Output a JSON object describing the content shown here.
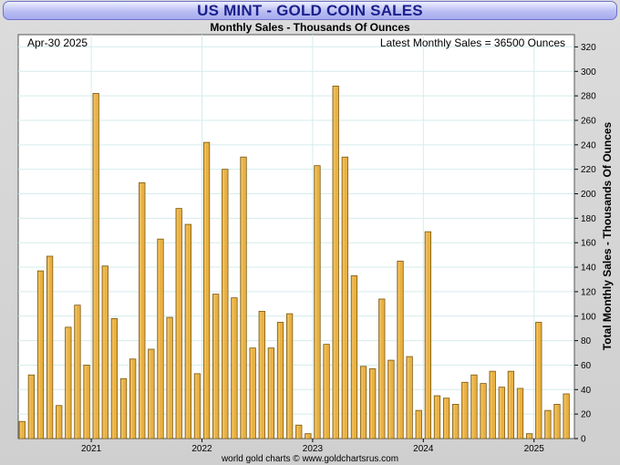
{
  "header": {
    "title": "US MINT - GOLD COIN SALES",
    "subtitle": "Monthly Sales - Thousands Of Ounces"
  },
  "annotations": {
    "date": "Apr-30  2025",
    "latest": "Latest Monthly Sales = 36500 Ounces"
  },
  "footer": "world gold charts © www.goldchartsrus.com",
  "colors": {
    "bar_fill": "#e9b042",
    "bar_edge": "#7a5a14",
    "grid": "#d5ecec",
    "title_text": "#1b1f8c",
    "title_bg": "#b9bdf3"
  },
  "chart_data": {
    "type": "bar",
    "title": "US MINT - GOLD COIN SALES",
    "subtitle": "Monthly Sales - Thousands Of Ounces",
    "xlabel": "",
    "ylabel": "Total Monthly Sales - Thousands Of Ounces",
    "ylim": [
      0,
      330
    ],
    "yticks": [
      0,
      20,
      40,
      60,
      80,
      100,
      120,
      140,
      160,
      180,
      200,
      220,
      240,
      260,
      280,
      300,
      320
    ],
    "x_tick_labels": [
      {
        "label": "2021",
        "index": 8
      },
      {
        "label": "2022",
        "index": 20
      },
      {
        "label": "2023",
        "index": 32
      },
      {
        "label": "2024",
        "index": 44
      },
      {
        "label": "2025",
        "index": 56
      }
    ],
    "grid": true,
    "y_axis_side": "right",
    "categories": [
      "2020-05",
      "2020-06",
      "2020-07",
      "2020-08",
      "2020-09",
      "2020-10",
      "2020-11",
      "2020-12",
      "2021-01",
      "2021-02",
      "2021-03",
      "2021-04",
      "2021-05",
      "2021-06",
      "2021-07",
      "2021-08",
      "2021-09",
      "2021-10",
      "2021-11",
      "2021-12",
      "2022-01",
      "2022-02",
      "2022-03",
      "2022-04",
      "2022-05",
      "2022-06",
      "2022-07",
      "2022-08",
      "2022-09",
      "2022-10",
      "2022-11",
      "2022-12",
      "2023-01",
      "2023-02",
      "2023-03",
      "2023-04",
      "2023-05",
      "2023-06",
      "2023-07",
      "2023-08",
      "2023-09",
      "2023-10",
      "2023-11",
      "2023-12",
      "2024-01",
      "2024-02",
      "2024-03",
      "2024-04",
      "2024-05",
      "2024-06",
      "2024-07",
      "2024-08",
      "2024-09",
      "2024-10",
      "2024-11",
      "2024-12",
      "2025-01",
      "2025-02",
      "2025-03",
      "2025-04"
    ],
    "values": [
      14,
      52,
      137,
      149,
      27,
      91,
      109,
      60,
      282,
      141,
      98,
      49,
      65,
      209,
      73,
      163,
      99,
      188,
      175,
      53,
      242,
      118,
      220,
      115,
      230,
      74,
      104,
      74,
      95,
      102,
      11,
      4,
      223,
      77,
      288,
      230,
      133,
      59,
      57,
      114,
      64,
      145,
      67,
      23,
      169,
      35,
      33,
      28,
      46,
      52,
      45,
      55,
      42,
      55,
      41,
      4,
      95,
      23,
      28,
      36.5
    ]
  }
}
